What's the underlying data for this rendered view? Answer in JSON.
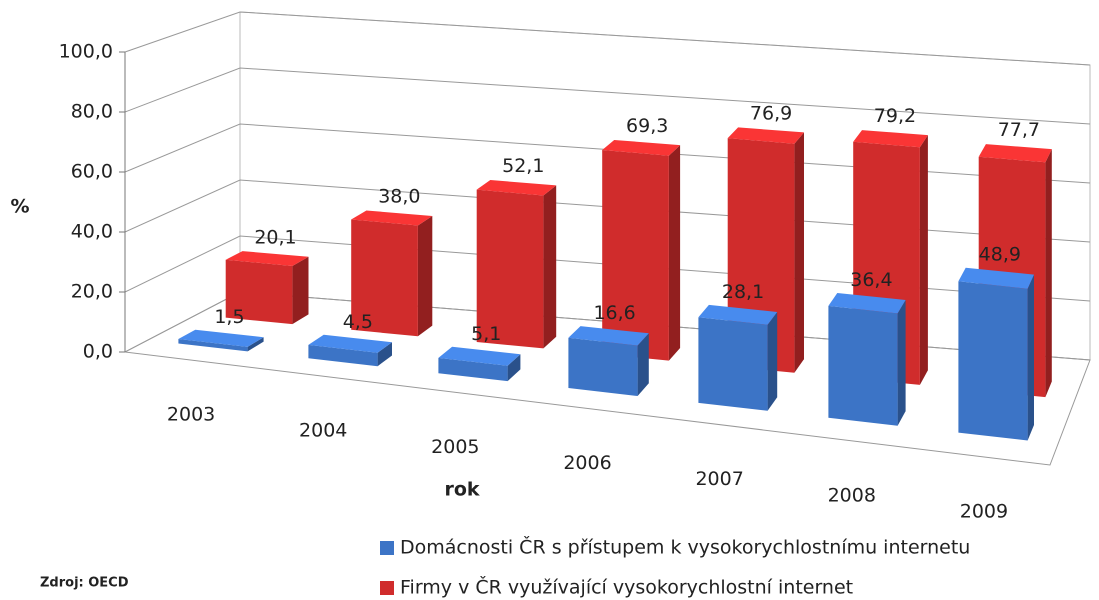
{
  "chart_data": {
    "type": "bar3d",
    "y_label": "%",
    "x_label": "rok",
    "source": "Zdroj: OECD",
    "categories": [
      "2003",
      "2004",
      "2005",
      "2006",
      "2007",
      "2008",
      "2009"
    ],
    "series": [
      {
        "name": "Domácnosti  ČR s přístupem k vysokorychlostnímu internetu",
        "color": "#3c74c6",
        "values": [
          1.5,
          4.5,
          5.1,
          16.6,
          28.1,
          36.4,
          48.9
        ],
        "value_labels": [
          "1,5",
          "4,5",
          "5,1",
          "16,6",
          "28,1",
          "36,4",
          "48,9"
        ]
      },
      {
        "name": "Firmy v ČR využívající vysokorychlostní internet",
        "color": "#d02c2c",
        "values": [
          20.1,
          38.0,
          52.1,
          69.3,
          76.9,
          79.2,
          77.7
        ],
        "value_labels": [
          "20,1",
          "38,0",
          "52,1",
          "69,3",
          "76,9",
          "79,2",
          "77,7"
        ]
      }
    ],
    "ylim": [
      0,
      100
    ],
    "yticks": [
      {
        "value": 0,
        "label": "0,0"
      },
      {
        "value": 20,
        "label": "20,0"
      },
      {
        "value": 40,
        "label": "40,0"
      },
      {
        "value": 60,
        "label": "60,0"
      },
      {
        "value": 80,
        "label": "80,0"
      },
      {
        "value": 100,
        "label": "100,0"
      }
    ],
    "grid": true
  }
}
